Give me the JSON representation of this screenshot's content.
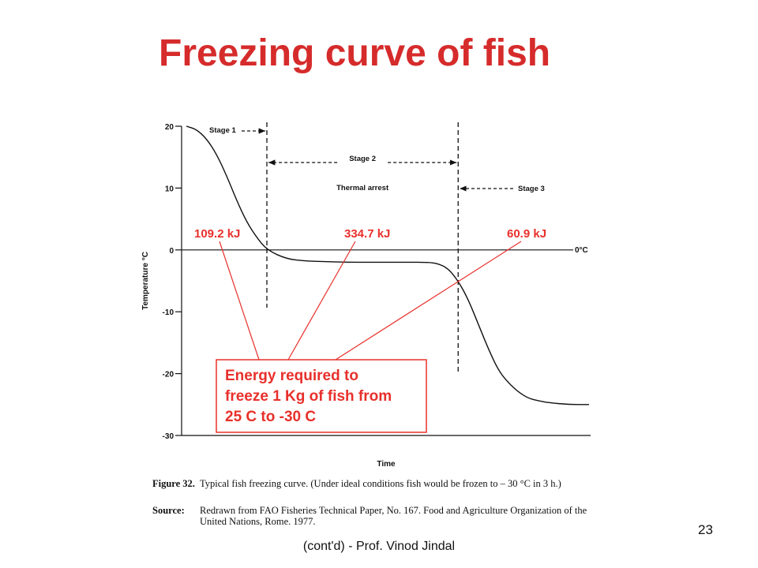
{
  "slide": {
    "title": "Freezing curve of fish",
    "footer": "(cont'd) - Prof. Vinod Jindal",
    "page_number": "23"
  },
  "chart_data": {
    "type": "line",
    "title": "",
    "xlabel": "Time",
    "ylabel": "Temperature °C",
    "ylim": [
      -30,
      20
    ],
    "y_ticks": [
      20,
      10,
      0,
      -10,
      -20,
      -30
    ],
    "y_tick_labels": [
      "20",
      "10",
      "0",
      "-10",
      "-20",
      "-30"
    ],
    "zero_line_label": "0°C",
    "grid": false,
    "series": [
      {
        "values_description_free": true,
        "x": [
          0,
          0.5,
          1,
          1.5,
          2,
          2.5,
          3,
          3.5,
          4,
          5,
          6,
          7,
          8,
          9,
          10,
          11,
          12,
          12.5,
          13,
          13.5,
          14,
          14.5,
          15,
          15.5,
          16,
          16.5,
          17,
          17.5,
          18,
          19,
          20
        ],
        "y": [
          20,
          19.5,
          18,
          15.5,
          12,
          8,
          4.5,
          2,
          0,
          -1.5,
          -1.8,
          -1.9,
          -2,
          -2,
          -2,
          -2,
          -2,
          -2.2,
          -3,
          -5,
          -8,
          -12,
          -16,
          -19.5,
          -21.5,
          -23,
          -24,
          -24.4,
          -24.7,
          -25,
          -25
        ]
      }
    ],
    "stage_dividers_x": [
      4,
      13.5
    ],
    "annotations": {
      "stage1": "Stage 1",
      "stage2": "Stage 2",
      "stage2_note": "Thermal arrest",
      "stage3": "Stage 3",
      "energy_labels": [
        "109.2 kJ",
        "334.7 kJ",
        "60.9 kJ"
      ],
      "energy_box": [
        "Energy required to",
        "freeze 1 Kg of fish from",
        "25 C to -30 C"
      ]
    }
  },
  "caption": {
    "figure_label": "Figure 32.",
    "figure_text": "Typical fish freezing curve. (Under ideal conditions fish would be frozen to – 30 °C in 3 h.)",
    "source_label": "Source:",
    "source_text": "Redrawn from FAO Fisheries Technical Paper, No. 167. Food and Agriculture Organization of the United Nations, Rome. 1977."
  },
  "colors": {
    "title": "#d62b2b",
    "annotation": "#e8302b",
    "axis": "#111111"
  }
}
